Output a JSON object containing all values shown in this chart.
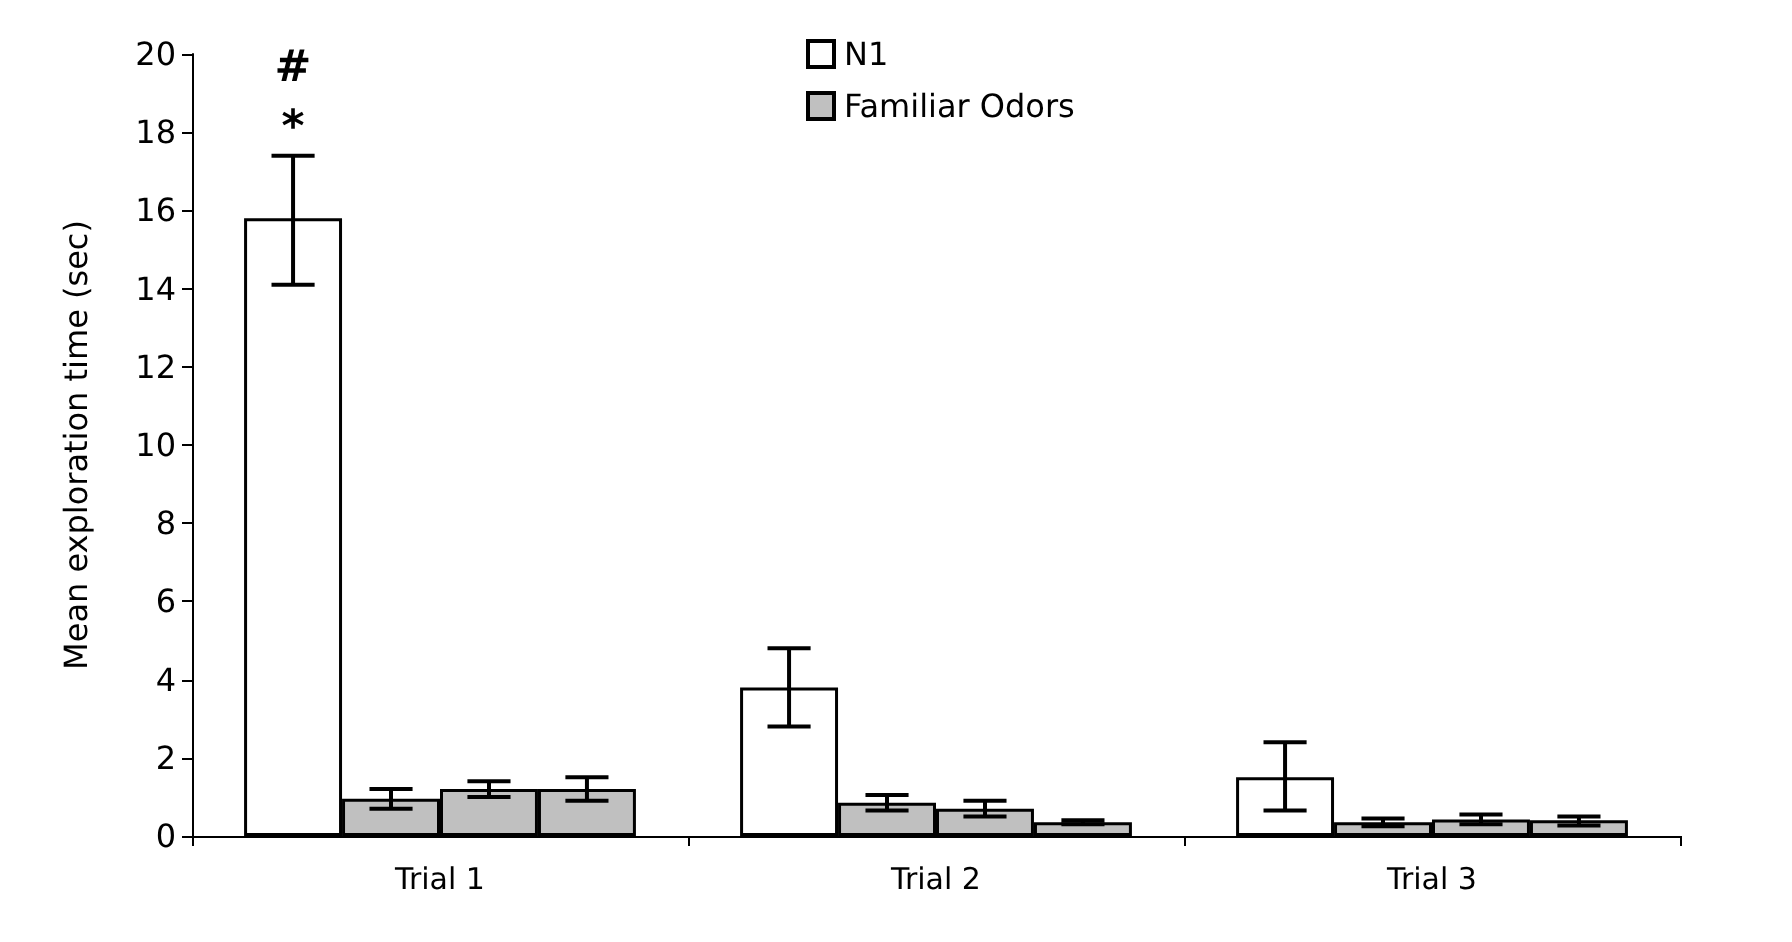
{
  "chart_data": {
    "type": "bar",
    "ylabel": "Mean exploration time (sec)",
    "categories": [
      "Trial 1",
      "Trial 2",
      "Trial 3"
    ],
    "series": [
      {
        "name": "N1",
        "color": "#ffffff",
        "values": [
          15.8,
          3.8,
          1.5
        ],
        "errors": [
          [
            14.1,
            17.4
          ],
          [
            2.8,
            4.8
          ],
          [
            0.65,
            2.4
          ]
        ]
      },
      {
        "name": "Familiar Odors",
        "color": "#c0c0c0",
        "values": [
          0.95,
          0.85,
          0.35
        ],
        "errors": [
          [
            0.7,
            1.2
          ],
          [
            0.65,
            1.05
          ],
          [
            0.25,
            0.45
          ]
        ]
      },
      {
        "color": "#c0c0c0",
        "values": [
          1.2,
          0.7,
          0.42
        ],
        "errors": [
          [
            1.0,
            1.4
          ],
          [
            0.5,
            0.9
          ],
          [
            0.3,
            0.55
          ]
        ]
      },
      {
        "color": "#c0c0c0",
        "values": [
          1.2,
          0.35,
          0.4
        ],
        "errors": [
          [
            0.9,
            1.5
          ],
          [
            0.3,
            0.4
          ],
          [
            0.27,
            0.5
          ]
        ]
      }
    ],
    "annotations": [
      "*",
      "#"
    ],
    "ylim": [
      0,
      20
    ],
    "yticks": [
      0,
      2,
      4,
      6,
      8,
      10,
      12,
      14,
      16,
      18,
      20
    ],
    "grid": false,
    "legend": "top"
  }
}
